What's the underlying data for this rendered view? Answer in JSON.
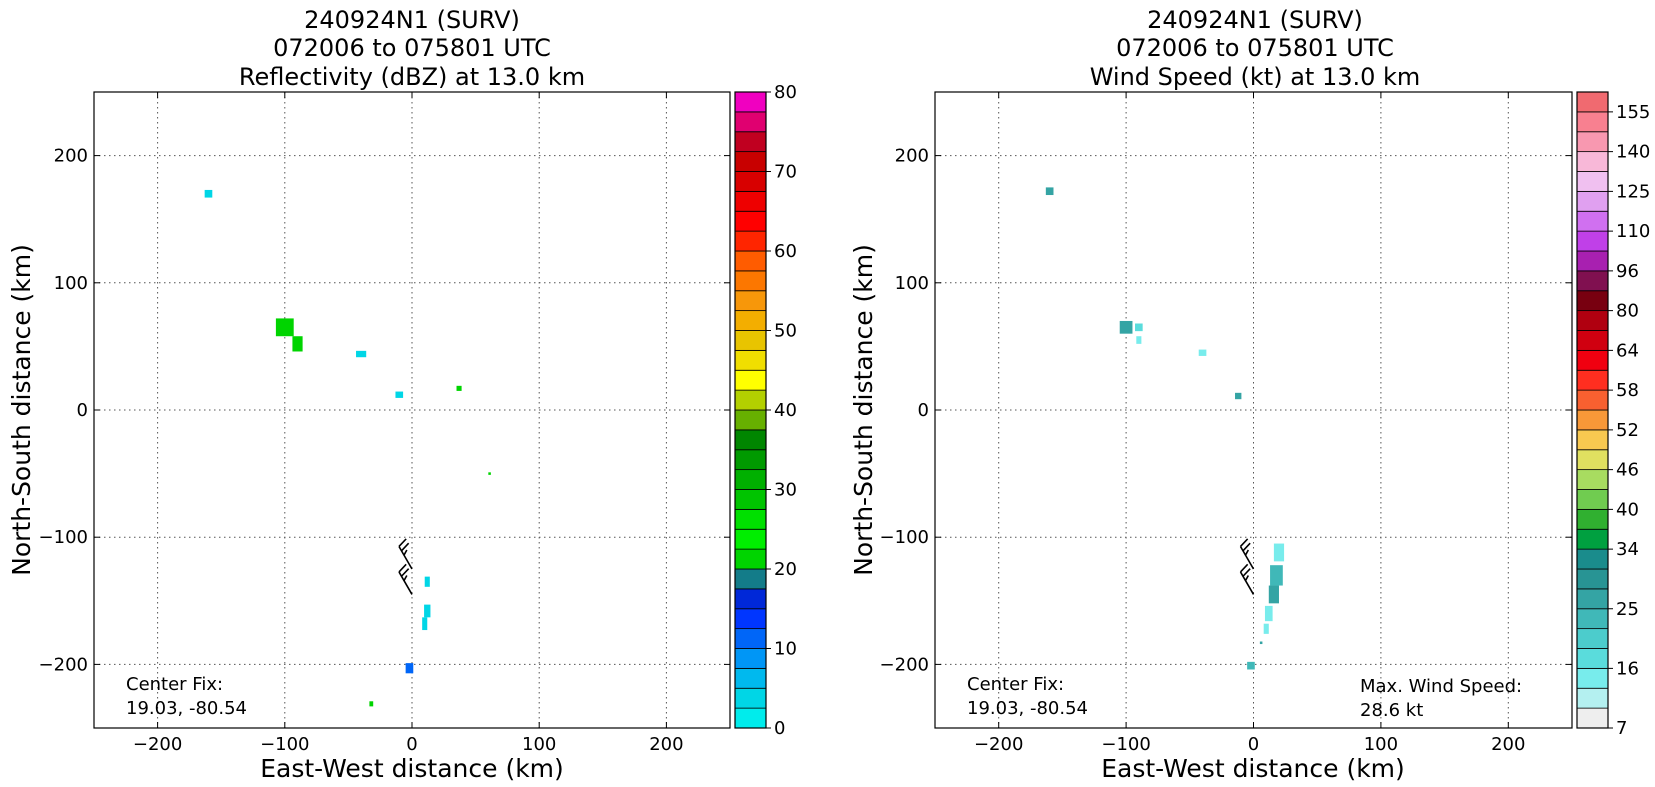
{
  "chart_data": [
    {
      "type": "heatmap",
      "title_lines": [
        "240924N1 (SURV)",
        "072006 to 075801 UTC",
        "Reflectivity (dBZ) at 13.0 km"
      ],
      "xlabel": "East-West distance (km)",
      "ylabel": "North-South distance (km)",
      "xlim": [
        -250,
        250
      ],
      "ylim": [
        -250,
        250
      ],
      "xticks": [
        -200,
        -100,
        0,
        100,
        200
      ],
      "yticks": [
        -200,
        -100,
        0,
        100,
        200
      ],
      "grid": true,
      "center_fix_label": "Center Fix:",
      "center_fix_value": "19.03, -80.54",
      "colorbar": {
        "min": 0,
        "max": 80,
        "step": 2.5,
        "ticks": [
          0,
          10,
          20,
          30,
          40,
          50,
          60,
          70,
          80
        ],
        "colors": [
          "#00ecec",
          "#00d6e6",
          "#00b9ee",
          "#0096f6",
          "#0066f8",
          "#0036ff",
          "#0028d8",
          "#137c89",
          "#00d400",
          "#00ee00",
          "#00e000",
          "#00c400",
          "#00b000",
          "#009a00",
          "#008600",
          "#67b000",
          "#b3d000",
          "#ffff00",
          "#f0de00",
          "#e8c400",
          "#f3ae00",
          "#f7970a",
          "#fc7700",
          "#ff5c00",
          "#ff2500",
          "#ff0000",
          "#ee0000",
          "#d80000",
          "#c80000",
          "#c00020",
          "#e00070",
          "#f000c0",
          "#e81ae8",
          "#c03ae0",
          "#a050d0",
          "#7040a0",
          "#3a2a50",
          "#000000"
        ]
      },
      "cells": [
        {
          "x": -160,
          "y": 170,
          "w": 6,
          "h": 6,
          "v": 4
        },
        {
          "x": -100,
          "y": 65,
          "w": 14,
          "h": 14,
          "v": 22
        },
        {
          "x": -90,
          "y": 52,
          "w": 8,
          "h": 12,
          "v": 20
        },
        {
          "x": -40,
          "y": 44,
          "w": 8,
          "h": 5,
          "v": 4
        },
        {
          "x": -10,
          "y": 12,
          "w": 6,
          "h": 5,
          "v": 4
        },
        {
          "x": 37,
          "y": 17,
          "w": 4,
          "h": 4,
          "v": 21
        },
        {
          "x": 61,
          "y": -50,
          "w": 2,
          "h": 2,
          "v": 21
        },
        {
          "x": 12,
          "y": -135,
          "w": 4,
          "h": 8,
          "v": 4
        },
        {
          "x": 12,
          "y": -158,
          "w": 5,
          "h": 10,
          "v": 4
        },
        {
          "x": 10,
          "y": -168,
          "w": 4,
          "h": 10,
          "v": 4
        },
        {
          "x": -2,
          "y": -203,
          "w": 6,
          "h": 8,
          "v": 12
        },
        {
          "x": -32,
          "y": -231,
          "w": 3,
          "h": 4,
          "v": 21
        }
      ],
      "wind_barbs": [
        {
          "x": 0,
          "y": -125,
          "dir": 330,
          "kt": 25
        },
        {
          "x": 0,
          "y": -145,
          "dir": 330,
          "kt": 25
        }
      ]
    },
    {
      "type": "heatmap",
      "title_lines": [
        "240924N1 (SURV)",
        "072006 to 075801 UTC",
        "Wind Speed (kt) at 13.0 km"
      ],
      "xlabel": "East-West distance (km)",
      "ylabel": "North-South distance (km)",
      "xlim": [
        -250,
        250
      ],
      "ylim": [
        -250,
        250
      ],
      "xticks": [
        -200,
        -100,
        0,
        100,
        200
      ],
      "yticks": [
        -200,
        -100,
        0,
        100,
        200
      ],
      "grid": true,
      "center_fix_label": "Center Fix:",
      "center_fix_value": "19.03, -80.54",
      "max_wind_label": "Max. Wind Speed:",
      "max_wind_value": "28.6 kt",
      "colorbar": {
        "min": 7,
        "max": 160,
        "bounds": [
          7,
          10,
          13,
          16,
          19,
          22,
          25,
          28,
          31,
          34,
          37,
          40,
          43,
          46,
          49,
          52,
          55,
          58,
          61,
          64,
          72,
          80,
          88,
          96,
          103,
          110,
          118,
          125,
          133,
          140,
          148,
          155,
          160
        ],
        "ticks": [
          7,
          16,
          25,
          34,
          40,
          46,
          52,
          58,
          64,
          80,
          96,
          110,
          125,
          140,
          155
        ],
        "colors": [
          "#eeeeee",
          "#b4f0f0",
          "#78ecec",
          "#5adcdc",
          "#4ccccc",
          "#40b8b8",
          "#34a4a4",
          "#289494",
          "#1a8c8c",
          "#00a040",
          "#30b030",
          "#70cc50",
          "#a8dc60",
          "#e0e060",
          "#f8c850",
          "#f89838",
          "#f86030",
          "#ff2e20",
          "#f00010",
          "#d00010",
          "#b00010",
          "#780010",
          "#801050",
          "#a820b0",
          "#c040e8",
          "#d070f0",
          "#e0a0f0",
          "#f0c0f0",
          "#f8b8d8",
          "#f898b0",
          "#f88090",
          "#f06a70",
          "#e85060",
          "#d03850",
          "#b02040",
          "#981840"
        ]
      },
      "cells": [
        {
          "x": -160,
          "y": 172,
          "w": 6,
          "h": 6,
          "v": 25
        },
        {
          "x": -100,
          "y": 65,
          "w": 10,
          "h": 10,
          "v": 26
        },
        {
          "x": -90,
          "y": 65,
          "w": 6,
          "h": 6,
          "v": 17
        },
        {
          "x": -90,
          "y": 55,
          "w": 4,
          "h": 6,
          "v": 14
        },
        {
          "x": -40,
          "y": 45,
          "w": 6,
          "h": 5,
          "v": 14
        },
        {
          "x": -12,
          "y": 11,
          "w": 5,
          "h": 5,
          "v": 26
        },
        {
          "x": 20,
          "y": -112,
          "w": 8,
          "h": 14,
          "v": 15
        },
        {
          "x": 18,
          "y": -130,
          "w": 10,
          "h": 16,
          "v": 24
        },
        {
          "x": 16,
          "y": -145,
          "w": 8,
          "h": 14,
          "v": 27
        },
        {
          "x": 12,
          "y": -160,
          "w": 6,
          "h": 12,
          "v": 15
        },
        {
          "x": 10,
          "y": -172,
          "w": 4,
          "h": 8,
          "v": 15
        },
        {
          "x": 6,
          "y": -183,
          "w": 2,
          "h": 2,
          "v": 26
        },
        {
          "x": -2,
          "y": -201,
          "w": 6,
          "h": 6,
          "v": 24
        }
      ],
      "wind_barbs": [
        {
          "x": 0,
          "y": -125,
          "dir": 330,
          "kt": 25
        },
        {
          "x": 0,
          "y": -145,
          "dir": 330,
          "kt": 25
        }
      ]
    }
  ]
}
